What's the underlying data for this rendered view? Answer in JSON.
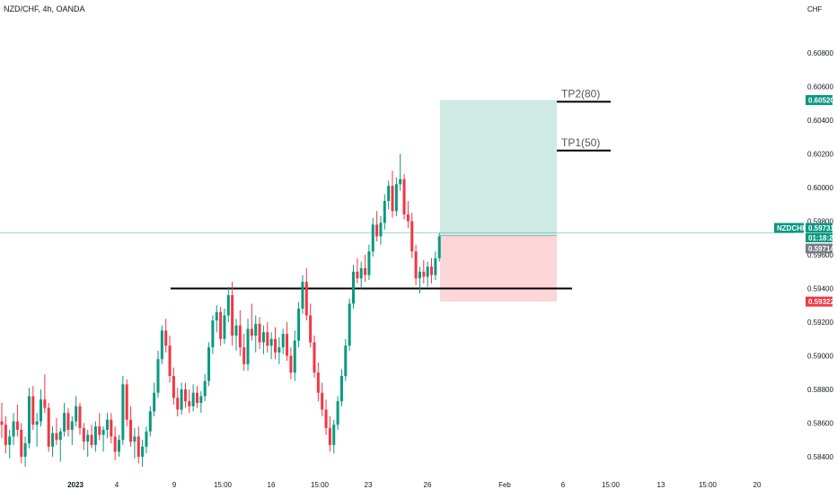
{
  "header": {
    "symbol_line": "NZD/CHF, 4h, OANDA",
    "currency": "CHF"
  },
  "colors": {
    "up": "#089981",
    "down": "#f23645",
    "target_zone": "#cfeae4",
    "stop_zone": "#fcd6d8",
    "last_price_tag": "#089981",
    "countdown_tag": "#787b86",
    "stop_tag": "#f23645",
    "line": "#000000"
  },
  "annotations": {
    "tp1": "TP1(50)",
    "tp2": "TP2(80)"
  },
  "price_tags": {
    "tp2_price": "0.60520",
    "symbol": "NZDCHF",
    "last_price": "0.59731",
    "countdown": "01:18:21",
    "stop_price_upper": "0.59714",
    "stop_price": "0.59322"
  },
  "chart_data": {
    "type": "candlestick",
    "title": "NZD/CHF, 4h, OANDA",
    "y_unit": "CHF",
    "ylim": [
      0.5832,
      0.6104
    ],
    "y_ticks": [
      "0.60800",
      "0.60600",
      "0.60400",
      "0.60200",
      "0.60000",
      "0.59800",
      "0.59600",
      "0.59400",
      "0.59200",
      "0.59000",
      "0.58800",
      "0.58600",
      "0.58400"
    ],
    "x_ticks": [
      "2023",
      "4",
      "9",
      "15:00",
      "16",
      "15:00",
      "23",
      "26",
      "Feb",
      "6",
      "15:00",
      "13",
      "15:00",
      "20"
    ],
    "grid": false,
    "candles": [
      [
        0.5861,
        0.5872,
        0.5851,
        0.5859
      ],
      [
        0.5859,
        0.5864,
        0.5842,
        0.5847
      ],
      [
        0.5847,
        0.5856,
        0.5839,
        0.5852
      ],
      [
        0.5852,
        0.5866,
        0.5847,
        0.5861
      ],
      [
        0.5861,
        0.5871,
        0.5852,
        0.5856
      ],
      [
        0.5856,
        0.586,
        0.5836,
        0.584
      ],
      [
        0.584,
        0.5852,
        0.5834,
        0.5848
      ],
      [
        0.5848,
        0.5881,
        0.5845,
        0.5876
      ],
      [
        0.5876,
        0.5882,
        0.5856,
        0.5859
      ],
      [
        0.5859,
        0.5866,
        0.5846,
        0.5861
      ],
      [
        0.5861,
        0.588,
        0.5858,
        0.5874
      ],
      [
        0.5874,
        0.5889,
        0.5866,
        0.5869
      ],
      [
        0.5869,
        0.5872,
        0.5843,
        0.5846
      ],
      [
        0.5846,
        0.5858,
        0.584,
        0.5854
      ],
      [
        0.5854,
        0.5863,
        0.5847,
        0.585
      ],
      [
        0.585,
        0.5857,
        0.5837,
        0.5855
      ],
      [
        0.5855,
        0.5872,
        0.5852,
        0.5866
      ],
      [
        0.5866,
        0.5869,
        0.5852,
        0.5856
      ],
      [
        0.5856,
        0.5864,
        0.5847,
        0.5861
      ],
      [
        0.5861,
        0.5876,
        0.5858,
        0.587
      ],
      [
        0.587,
        0.5872,
        0.5853,
        0.5857
      ],
      [
        0.5857,
        0.586,
        0.5844,
        0.5849
      ],
      [
        0.5849,
        0.5856,
        0.584,
        0.5853
      ],
      [
        0.5853,
        0.5859,
        0.5845,
        0.5847
      ],
      [
        0.5847,
        0.5861,
        0.5843,
        0.5858
      ],
      [
        0.5858,
        0.5866,
        0.585,
        0.5853
      ],
      [
        0.5853,
        0.5858,
        0.5843,
        0.5856
      ],
      [
        0.5856,
        0.5866,
        0.5851,
        0.5862
      ],
      [
        0.5862,
        0.5866,
        0.5848,
        0.5852
      ],
      [
        0.5852,
        0.5858,
        0.5838,
        0.5843
      ],
      [
        0.5843,
        0.5853,
        0.584,
        0.585
      ],
      [
        0.585,
        0.5888,
        0.5847,
        0.5883
      ],
      [
        0.5883,
        0.5886,
        0.5858,
        0.5862
      ],
      [
        0.5862,
        0.587,
        0.5846,
        0.5849
      ],
      [
        0.5849,
        0.5857,
        0.5839,
        0.5852
      ],
      [
        0.5852,
        0.5858,
        0.5836,
        0.584
      ],
      [
        0.584,
        0.585,
        0.5834,
        0.5846
      ],
      [
        0.5846,
        0.5858,
        0.5842,
        0.5855
      ],
      [
        0.5855,
        0.587,
        0.5852,
        0.5867
      ],
      [
        0.5867,
        0.5884,
        0.5864,
        0.5878
      ],
      [
        0.5878,
        0.5903,
        0.5875,
        0.5898
      ],
      [
        0.5898,
        0.5918,
        0.5895,
        0.5915
      ],
      [
        0.5915,
        0.5922,
        0.5902,
        0.5906
      ],
      [
        0.5906,
        0.5912,
        0.5884,
        0.5888
      ],
      [
        0.5888,
        0.5893,
        0.5871,
        0.5875
      ],
      [
        0.5875,
        0.5881,
        0.5864,
        0.5868
      ],
      [
        0.5868,
        0.5884,
        0.5865,
        0.588
      ],
      [
        0.588,
        0.5884,
        0.5869,
        0.5873
      ],
      [
        0.5873,
        0.588,
        0.5866,
        0.587
      ],
      [
        0.587,
        0.5883,
        0.5867,
        0.5878
      ],
      [
        0.5878,
        0.5882,
        0.5869,
        0.5872
      ],
      [
        0.5872,
        0.5879,
        0.5866,
        0.5876
      ],
      [
        0.5876,
        0.5889,
        0.5873,
        0.5885
      ],
      [
        0.5885,
        0.5908,
        0.5882,
        0.5905
      ],
      [
        0.5905,
        0.5924,
        0.5901,
        0.5921
      ],
      [
        0.5921,
        0.593,
        0.5914,
        0.5926
      ],
      [
        0.5926,
        0.5929,
        0.5906,
        0.591
      ],
      [
        0.591,
        0.5928,
        0.5907,
        0.5924
      ],
      [
        0.5924,
        0.5941,
        0.592,
        0.5936
      ],
      [
        0.5936,
        0.5944,
        0.5906,
        0.5912
      ],
      [
        0.5912,
        0.5922,
        0.5903,
        0.5918
      ],
      [
        0.5918,
        0.5927,
        0.59,
        0.5905
      ],
      [
        0.5905,
        0.5913,
        0.5891,
        0.5895
      ],
      [
        0.5895,
        0.5922,
        0.5891,
        0.5916
      ],
      [
        0.5916,
        0.5931,
        0.5909,
        0.5912
      ],
      [
        0.5912,
        0.5924,
        0.5902,
        0.5919
      ],
      [
        0.5919,
        0.5923,
        0.5904,
        0.5908
      ],
      [
        0.5908,
        0.5918,
        0.5901,
        0.5914
      ],
      [
        0.5914,
        0.592,
        0.5902,
        0.5906
      ],
      [
        0.5906,
        0.5914,
        0.5898,
        0.591
      ],
      [
        0.591,
        0.5917,
        0.5898,
        0.5902
      ],
      [
        0.5902,
        0.5911,
        0.5895,
        0.5905
      ],
      [
        0.5905,
        0.5916,
        0.5901,
        0.5913
      ],
      [
        0.5913,
        0.592,
        0.5897,
        0.59
      ],
      [
        0.59,
        0.5905,
        0.5886,
        0.589
      ],
      [
        0.589,
        0.5915,
        0.5885,
        0.5909
      ],
      [
        0.5909,
        0.5932,
        0.5905,
        0.5928
      ],
      [
        0.5928,
        0.5948,
        0.5925,
        0.5944
      ],
      [
        0.5944,
        0.5952,
        0.5921,
        0.5924
      ],
      [
        0.5924,
        0.5931,
        0.5905,
        0.5908
      ],
      [
        0.5908,
        0.5912,
        0.5887,
        0.589
      ],
      [
        0.589,
        0.5896,
        0.5873,
        0.5878
      ],
      [
        0.5878,
        0.5884,
        0.5864,
        0.5868
      ],
      [
        0.5868,
        0.5874,
        0.5853,
        0.5857
      ],
      [
        0.5857,
        0.5864,
        0.5843,
        0.5847
      ],
      [
        0.5847,
        0.5862,
        0.5842,
        0.5859
      ],
      [
        0.5859,
        0.5876,
        0.5856,
        0.5873
      ],
      [
        0.5873,
        0.5892,
        0.587,
        0.5888
      ],
      [
        0.5888,
        0.591,
        0.5885,
        0.5906
      ],
      [
        0.5906,
        0.5934,
        0.5903,
        0.5931
      ],
      [
        0.5931,
        0.5954,
        0.5928,
        0.595
      ],
      [
        0.595,
        0.5958,
        0.5943,
        0.5946
      ],
      [
        0.5946,
        0.5956,
        0.594,
        0.5952
      ],
      [
        0.5952,
        0.596,
        0.5944,
        0.5948
      ],
      [
        0.5948,
        0.5966,
        0.5945,
        0.5962
      ],
      [
        0.5962,
        0.5982,
        0.5959,
        0.5978
      ],
      [
        0.5978,
        0.5986,
        0.5968,
        0.5971
      ],
      [
        0.5971,
        0.5983,
        0.5966,
        0.5979
      ],
      [
        0.5979,
        0.5996,
        0.5975,
        0.5992
      ],
      [
        0.5992,
        0.6004,
        0.5987,
        0.6001
      ],
      [
        0.6001,
        0.601,
        0.5982,
        0.5986
      ],
      [
        0.5986,
        0.6006,
        0.5983,
        0.6002
      ],
      [
        0.6002,
        0.602,
        0.5998,
        0.6005
      ],
      [
        0.6005,
        0.6008,
        0.5981,
        0.5984
      ],
      [
        0.5984,
        0.5992,
        0.5976,
        0.598
      ],
      [
        0.598,
        0.5985,
        0.5958,
        0.5962
      ],
      [
        0.5962,
        0.5966,
        0.5942,
        0.5946
      ],
      [
        0.5946,
        0.5953,
        0.5937,
        0.595
      ],
      [
        0.595,
        0.5957,
        0.5943,
        0.5947
      ],
      [
        0.5947,
        0.5956,
        0.5941,
        0.5953
      ],
      [
        0.5953,
        0.5958,
        0.5943,
        0.5948
      ],
      [
        0.5948,
        0.5962,
        0.5945,
        0.5958
      ],
      [
        0.5958,
        0.5973,
        0.5956,
        0.5971
      ]
    ],
    "horizontal_lines": [
      {
        "name": "support-line",
        "price": 0.594
      },
      {
        "name": "tp1-line",
        "price": 0.6022,
        "label": "TP1(50)"
      },
      {
        "name": "tp2-line",
        "price": 0.6051,
        "label": "TP2(80)"
      }
    ],
    "position": {
      "entry": 0.59714,
      "target": 0.6052,
      "stop": 0.59322
    }
  }
}
